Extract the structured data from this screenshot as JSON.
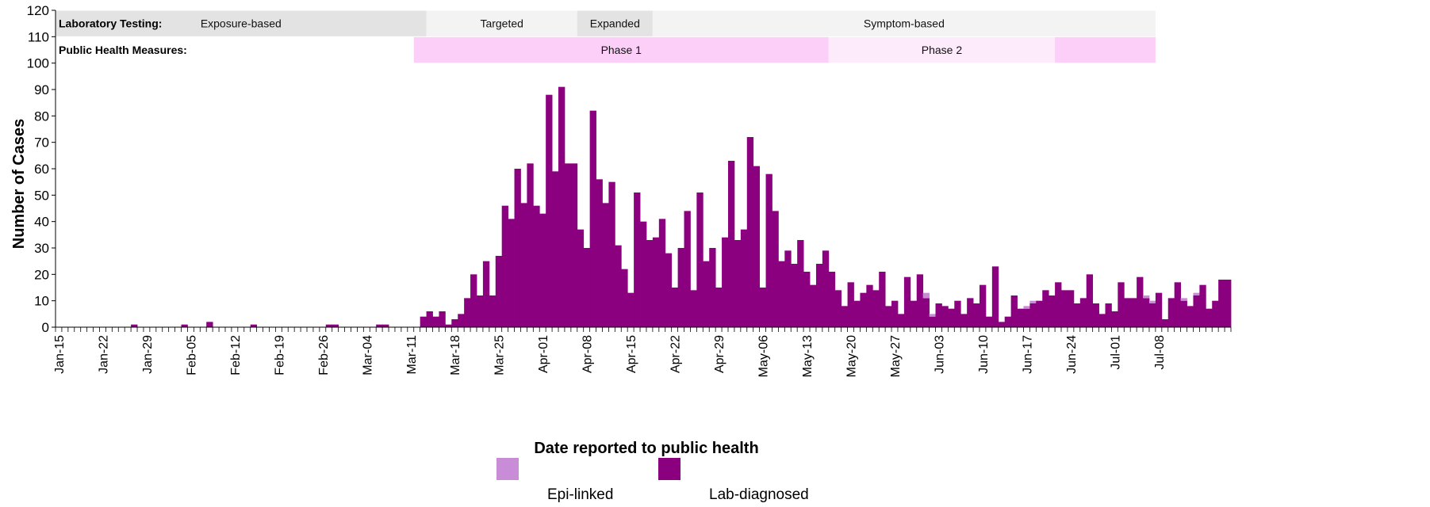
{
  "chart_data": {
    "type": "bar",
    "stacked": true,
    "xlabel": "Date reported to public health",
    "ylabel": "Number of Cases",
    "ylim": [
      0,
      120
    ],
    "yticks": [
      0,
      10,
      20,
      30,
      40,
      50,
      60,
      70,
      80,
      90,
      100,
      110,
      120
    ],
    "x_start": "Jan-15",
    "x_end": "Jul-08",
    "x_tick_labels": [
      "Jan-15",
      "Jan-22",
      "Jan-29",
      "Feb-05",
      "Feb-12",
      "Feb-19",
      "Feb-26",
      "Mar-04",
      "Mar-11",
      "Mar-18",
      "Mar-25",
      "Apr-01",
      "Apr-08",
      "Apr-15",
      "Apr-22",
      "Apr-29",
      "May-06",
      "May-13",
      "May-20",
      "May-27",
      "Jun-03",
      "Jun-10",
      "Jun-17",
      "Jun-24",
      "Jul-01",
      "Jul-08"
    ],
    "legend_position": "bottom-center",
    "grid": false,
    "series": [
      {
        "name": "Lab-diagnosed",
        "color": "#8B007F",
        "values": [
          0,
          0,
          0,
          0,
          0,
          0,
          0,
          0,
          0,
          0,
          0,
          0,
          1,
          0,
          0,
          0,
          0,
          0,
          0,
          0,
          1,
          0,
          0,
          0,
          2,
          0,
          0,
          0,
          0,
          0,
          0,
          1,
          0,
          0,
          0,
          0,
          0,
          0,
          0,
          0,
          0,
          0,
          0,
          1,
          1,
          0,
          0,
          0,
          0,
          0,
          0,
          1,
          1,
          0,
          0,
          0,
          0,
          0,
          4,
          6,
          4,
          6,
          1,
          3,
          5,
          11,
          20,
          12,
          25,
          12,
          27,
          46,
          41,
          60,
          47,
          62,
          46,
          43,
          88,
          59,
          91,
          62,
          62,
          37,
          30,
          82,
          56,
          47,
          55,
          31,
          22,
          13,
          51,
          40,
          33,
          34,
          41,
          28,
          15,
          30,
          44,
          14,
          51,
          25,
          30,
          15,
          34,
          63,
          33,
          37,
          72,
          61,
          15,
          58,
          44,
          25,
          29,
          24,
          33,
          21,
          16,
          24,
          29,
          21,
          14,
          8,
          17,
          10,
          13,
          16,
          14,
          21,
          8,
          10,
          5,
          19,
          10,
          20,
          11,
          4,
          9,
          8,
          7,
          10,
          5,
          11,
          9,
          16,
          4,
          23,
          2,
          4,
          12,
          7,
          7,
          9,
          10,
          14,
          12,
          17,
          14,
          14,
          9,
          11,
          20,
          9,
          5,
          9,
          6,
          17,
          11,
          11,
          19,
          11,
          9,
          13,
          3,
          11,
          17,
          10,
          8,
          12,
          16,
          7,
          10,
          18,
          18
        ]
      },
      {
        "name": "Epi-linked",
        "color": "#C98CD6",
        "values": [
          0,
          0,
          0,
          0,
          0,
          0,
          0,
          0,
          0,
          0,
          0,
          0,
          0,
          0,
          0,
          0,
          0,
          0,
          0,
          0,
          0,
          0,
          0,
          0,
          0,
          0,
          0,
          0,
          0,
          0,
          0,
          0,
          0,
          0,
          0,
          0,
          0,
          0,
          0,
          0,
          0,
          0,
          0,
          0,
          0,
          0,
          0,
          0,
          0,
          0,
          0,
          0,
          0,
          0,
          0,
          0,
          0,
          0,
          0,
          0,
          0,
          0,
          0,
          0,
          0,
          0,
          0,
          0,
          0,
          0,
          0,
          0,
          0,
          0,
          0,
          0,
          0,
          0,
          0,
          0,
          0,
          0,
          0,
          0,
          0,
          0,
          0,
          0,
          0,
          0,
          0,
          0,
          0,
          0,
          0,
          0,
          0,
          0,
          0,
          0,
          0,
          0,
          0,
          0,
          0,
          0,
          0,
          0,
          0,
          0,
          0,
          0,
          0,
          0,
          0,
          0,
          0,
          0,
          0,
          0,
          0,
          0,
          0,
          0,
          0,
          0,
          0,
          0,
          0,
          0,
          0,
          0,
          0,
          0,
          0,
          0,
          0,
          0,
          2,
          1,
          0,
          0,
          0,
          0,
          0,
          0,
          0,
          0,
          0,
          0,
          0,
          0,
          0,
          0,
          1,
          1,
          0,
          0,
          0,
          0,
          0,
          0,
          0,
          0,
          0,
          0,
          0,
          0,
          0,
          0,
          0,
          0,
          0,
          1,
          1,
          0,
          0,
          0,
          0,
          1,
          0,
          1,
          0,
          0,
          0,
          0,
          0,
          0,
          0
        ]
      }
    ],
    "bands": [
      {
        "label": "Laboratory Testing:",
        "y_range": [
          110,
          120
        ],
        "segments": [
          {
            "label": "Exposure-based",
            "start_day": 0,
            "end_day": 59,
            "color": "#E3E3E3"
          },
          {
            "label": "Targeted",
            "start_day": 59,
            "end_day": 83,
            "color": "#F3F3F3"
          },
          {
            "label": "Expanded",
            "start_day": 83,
            "end_day": 95,
            "color": "#E3E3E3"
          },
          {
            "label": "Symptom-based",
            "start_day": 95,
            "end_day": 175,
            "color": "#F3F3F3"
          }
        ]
      },
      {
        "label": "Public Health Measures:",
        "y_range": [
          100,
          110
        ],
        "segments": [
          {
            "label": "Phase 1",
            "start_day": 57,
            "end_day": 123,
            "color": "#FCCFF8"
          },
          {
            "label": "Phase 2",
            "start_day": 123,
            "end_day": 159,
            "color": "#FDEBFB"
          },
          {
            "label": "",
            "start_day": 159,
            "end_day": 175,
            "color": "#FCCFF8"
          }
        ]
      }
    ]
  }
}
